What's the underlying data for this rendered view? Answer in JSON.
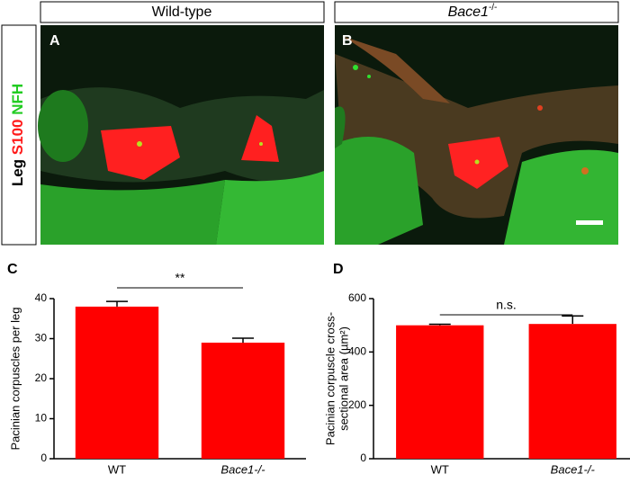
{
  "panels": [
    {
      "letter": "A",
      "header": "Wild-type"
    },
    {
      "letter": "B",
      "header": "Bace1",
      "header_sup": "-/-"
    }
  ],
  "side_label": {
    "tissue": "Leg",
    "stain_red": "S100",
    "stain_green": "NFH"
  },
  "chart_data": [
    {
      "type": "bar",
      "panel_label": "C",
      "ylabel": [
        "Pacinian corpuscles per leg"
      ],
      "categories": [
        "WT",
        "Bace1-/-"
      ],
      "values": [
        38,
        29
      ],
      "errors": [
        1.3,
        1.1
      ],
      "color": "#ff0000",
      "ylim": [
        0,
        40
      ],
      "yticks": [
        0,
        10,
        20,
        30,
        40
      ],
      "annotation": "**"
    },
    {
      "type": "bar",
      "panel_label": "D",
      "ylabel": [
        "Pacinian corpuscle cross-",
        "sectional area (µm²)"
      ],
      "categories": [
        "WT",
        "Bace1-/-"
      ],
      "values": [
        500,
        505
      ],
      "errors": [
        4,
        30
      ],
      "color": "#ff0000",
      "ylim": [
        0,
        600
      ],
      "yticks": [
        0,
        200,
        400,
        600
      ],
      "annotation": "n.s."
    }
  ]
}
